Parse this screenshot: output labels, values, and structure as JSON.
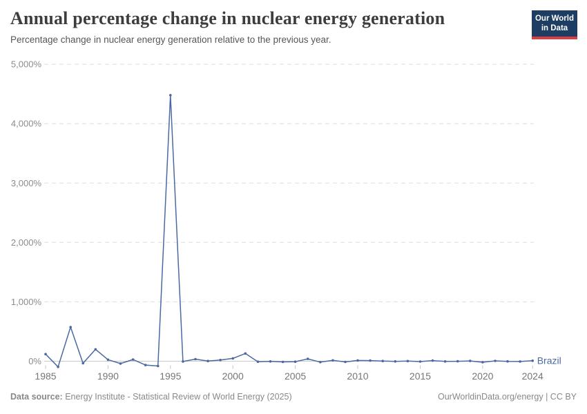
{
  "header": {
    "title": "Annual percentage change in nuclear energy generation",
    "subtitle": "Percentage change in nuclear energy generation relative to the previous year.",
    "logo": {
      "line1": "Our World",
      "line2": "in Data"
    }
  },
  "chart_data": {
    "type": "line",
    "title": "Annual percentage change in nuclear energy generation",
    "xlabel": "",
    "ylabel": "",
    "x": [
      1985,
      1986,
      1987,
      1988,
      1989,
      1990,
      1991,
      1992,
      1993,
      1994,
      1995,
      1996,
      1997,
      1998,
      1999,
      2000,
      2001,
      2002,
      2003,
      2004,
      2005,
      2006,
      2007,
      2008,
      2009,
      2010,
      2011,
      2012,
      2013,
      2014,
      2015,
      2016,
      2017,
      2018,
      2019,
      2020,
      2021,
      2022,
      2023,
      2024
    ],
    "series": [
      {
        "name": "Brazil",
        "color": "#4a69a2",
        "values": [
          120,
          -95,
          575,
          -35,
          200,
          25,
          -40,
          28,
          -65,
          -80,
          4480,
          -5,
          35,
          3,
          20,
          48,
          130,
          -8,
          -4,
          -12,
          -8,
          40,
          -15,
          14,
          -12,
          13,
          10,
          3,
          -4,
          2,
          -6,
          10,
          -3,
          -1,
          5,
          -18,
          6,
          -2,
          -5,
          8
        ]
      }
    ],
    "x_ticks": [
      1985,
      1990,
      1995,
      2000,
      2005,
      2010,
      2015,
      2020,
      2024
    ],
    "x_tick_labels": [
      "1985",
      "1990",
      "1995",
      "2000",
      "2005",
      "2010",
      "2015",
      "2020",
      "2024"
    ],
    "y_ticks": [
      0,
      1000,
      2000,
      3000,
      4000,
      5000
    ],
    "y_tick_labels": [
      "0%",
      "1,000%",
      "2,000%",
      "3,000%",
      "4,000%",
      "5,000%"
    ],
    "ylim": [
      -100,
      5000
    ],
    "xlim": [
      1985,
      2024
    ],
    "grid": "horizontal-dashed",
    "legend_position": "end-of-line"
  },
  "footer": {
    "source_label": "Data source:",
    "source_text": "Energy Institute - Statistical Review of World Energy (2025)",
    "credit_text": "OurWorldinData.org/energy | CC BY"
  },
  "colors": {
    "series": "#4a69a2",
    "grid": "#dedede",
    "zero_line": "#c8c8c8",
    "tick_mark": "#c4c4c4",
    "y_axis_text": "#8c8c8c",
    "x_axis_text": "#757575",
    "title_text": "#3d3d3d",
    "subtitle_text": "#565656",
    "footer_text": "#888888",
    "logo_bg": "#1d3d63",
    "logo_accent": "#dc3d43",
    "logo_text": "#ffffff"
  }
}
